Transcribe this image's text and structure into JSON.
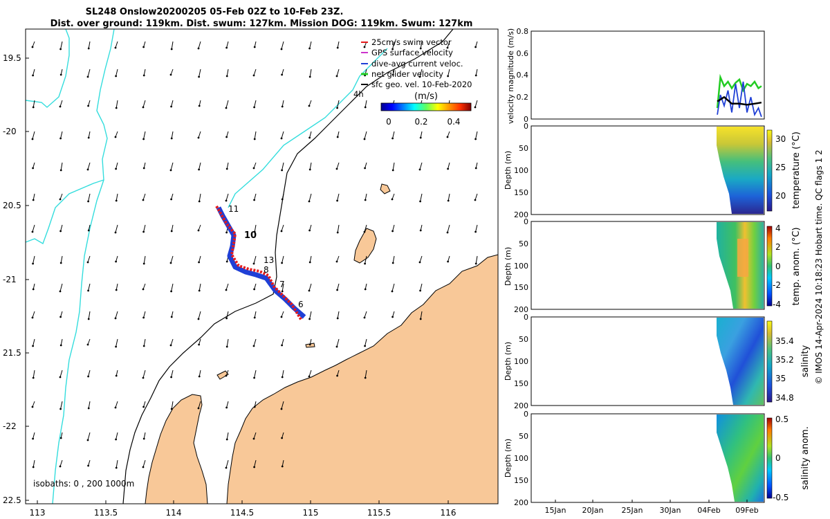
{
  "title": {
    "line1": "SL248 Onslow20200205 05-Feb 02Z to 10-Feb 23Z.",
    "line2": "Dist. over ground: 119km. Dist. swum: 127km. Mission DOG: 119km. Swum: 127km"
  },
  "map": {
    "lon_ticks": [
      "113",
      "113.5",
      "114",
      "114.5",
      "115",
      "115.5",
      "116"
    ],
    "lat_ticks": [
      "19.5",
      "-20",
      "20.5",
      "-21",
      "21.5",
      "-22",
      "22.5"
    ],
    "isobaths_label": "isobaths: 0 , 200 1000m",
    "colorbar_title": "(m/s)",
    "colorbar_ticks": [
      "0",
      "0.2",
      "0.4"
    ],
    "legend": [
      {
        "label": "25cm/s swim vector",
        "color": "#e41a1c"
      },
      {
        "label": "GPS surface velocity",
        "color": "#cc33cc"
      },
      {
        "label": "dive-avg current veloc.",
        "color": "#1f3fd6"
      },
      {
        "label": "net glider velocity",
        "color": "#22cc22"
      },
      {
        "label": "sfc geo. vel. 10-Feb-2020",
        "color": "#000000"
      }
    ],
    "scale_label": "4h",
    "day_labels": [
      "11",
      "10",
      "13",
      "8",
      "7",
      "6"
    ],
    "colors": {
      "land": "#f8c898",
      "coast_outline": "#33dddd",
      "track_red": "#e41a1c",
      "track_blue": "#1f3fd6"
    }
  },
  "panels": {
    "velocity": {
      "ylabel": "velocity magnitude (m/s)",
      "yticks": [
        "0",
        "0.2",
        "0.4",
        "0.6",
        "0.8"
      ]
    },
    "temperature": {
      "ylabel": "Depth (m)",
      "clabel": "temperature (°C)",
      "yticks": [
        "0",
        "50",
        "100",
        "150",
        "200"
      ],
      "cticks": [
        "30",
        "25",
        "20"
      ]
    },
    "temp_anom": {
      "ylabel": "Depth (m)",
      "clabel": "temp. anom. (°C)",
      "yticks": [
        "0",
        "50",
        "100",
        "150",
        "200"
      ],
      "cticks": [
        "4",
        "2",
        "0",
        "-2",
        "-4"
      ]
    },
    "salinity": {
      "ylabel": "Depth (m)",
      "clabel": "salinity",
      "yticks": [
        "0",
        "50",
        "100",
        "150",
        "200"
      ],
      "cticks": [
        "35.4",
        "35.2",
        "35",
        "34.8"
      ]
    },
    "sal_anom": {
      "ylabel": "Depth (m)",
      "clabel": "salinity anom.",
      "yticks": [
        "0",
        "50",
        "100",
        "150",
        "200"
      ],
      "cticks": [
        "0.5",
        "0",
        "-0.5"
      ]
    },
    "date_ticks": [
      "15Jan",
      "20Jan",
      "25Jan",
      "30Jan",
      "04Feb",
      "09Feb"
    ]
  },
  "credit": "© IMOS 14-Apr-2024 10:18:23 Hobart time. QC flags 1  2",
  "chart_data": [
    {
      "type": "scatter",
      "title": "SL248 Onslow20200205 05-Feb 02Z to 10-Feb 23Z.",
      "xlabel": "longitude",
      "ylabel": "latitude",
      "xlim": [
        112.95,
        116.35
      ],
      "ylim": [
        -22.52,
        -19.3
      ],
      "track": {
        "lon": [
          114.3,
          114.34,
          114.38,
          114.42,
          114.47,
          114.5,
          114.55,
          114.62,
          114.68,
          114.74,
          114.8,
          114.86,
          114.92
        ],
        "lat": [
          -20.52,
          -20.6,
          -20.68,
          -20.73,
          -20.8,
          -20.9,
          -20.93,
          -20.96,
          -21.02,
          -21.12,
          -21.18,
          -21.22,
          -21.27
        ]
      }
    },
    {
      "type": "line",
      "ylabel": "velocity magnitude (m/s)",
      "ylim": [
        0,
        0.8
      ],
      "series": [
        {
          "name": "net glider velocity",
          "x": [
            5.1,
            5.5,
            6,
            6.5,
            7,
            7.5,
            8,
            8.5,
            9,
            9.5,
            10,
            10.5,
            10.9
          ],
          "values": [
            0.1,
            0.38,
            0.3,
            0.34,
            0.28,
            0.33,
            0.36,
            0.26,
            0.32,
            0.3,
            0.34,
            0.28,
            0.3
          ]
        },
        {
          "name": "dive-avg current veloc.",
          "x": [
            5.1,
            5.5,
            6,
            6.5,
            7,
            7.5,
            8,
            8.5,
            9,
            9.5,
            10,
            10.5,
            10.9
          ],
          "values": [
            0.04,
            0.22,
            0.12,
            0.26,
            0.06,
            0.32,
            0.1,
            0.34,
            0.06,
            0.2,
            0.04,
            0.1,
            0.02
          ]
        },
        {
          "name": "sfc geo. vel.",
          "x": [
            5.1,
            6,
            7,
            8,
            9,
            10,
            10.9
          ],
          "values": [
            0.16,
            0.2,
            0.14,
            0.14,
            0.13,
            0.14,
            0.15
          ]
        }
      ]
    },
    {
      "type": "heatmap",
      "name": "temperature",
      "colorbar": "temperature (°C)",
      "clim": [
        17,
        32
      ],
      "ylim_depth": [
        200,
        0
      ],
      "xlabel_ticks": [
        "15Jan",
        "20Jan",
        "25Jan",
        "30Jan",
        "04Feb",
        "09Feb"
      ]
    },
    {
      "type": "heatmap",
      "name": "temp. anom.",
      "colorbar": "temp. anom. (°C)",
      "clim": [
        -4,
        4
      ],
      "ylim_depth": [
        200,
        0
      ]
    },
    {
      "type": "heatmap",
      "name": "salinity",
      "colorbar": "salinity",
      "clim": [
        34.7,
        35.55
      ],
      "ylim_depth": [
        200,
        0
      ]
    },
    {
      "type": "heatmap",
      "name": "salinity anom.",
      "colorbar": "salinity anom.",
      "clim": [
        -0.6,
        0.6
      ],
      "ylim_depth": [
        200,
        0
      ]
    }
  ]
}
